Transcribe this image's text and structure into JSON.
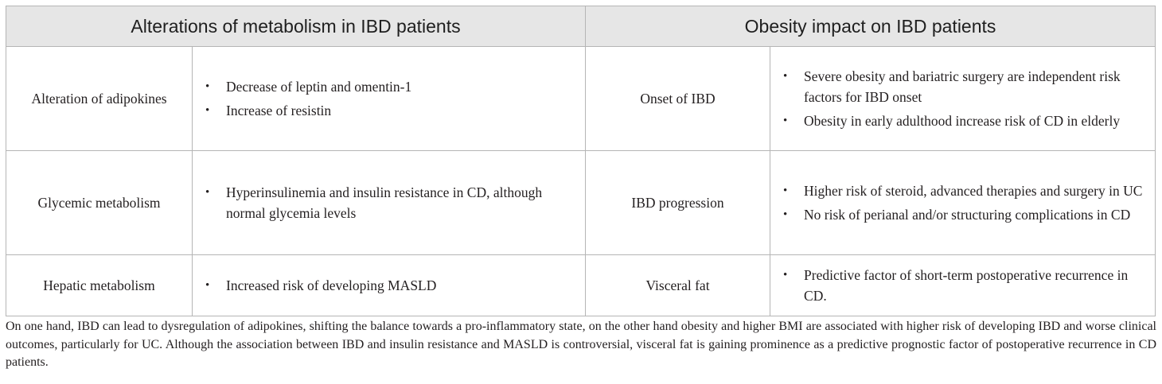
{
  "headers": {
    "left": "Alterations of metabolism in IBD patients",
    "right": "Obesity impact on IBD patients"
  },
  "rows": [
    {
      "left_label": "Alteration of adipokines",
      "left_items": [
        "Decrease of leptin and omentin-1",
        "Increase of resistin"
      ],
      "right_label": "Onset of IBD",
      "right_items": [
        "Severe obesity and bariatric surgery are independent risk factors for IBD onset",
        "Obesity in early adulthood increase risk of CD in elderly"
      ]
    },
    {
      "left_label": "Glycemic metabolism",
      "left_items": [
        "Hyperinsulinemia and insulin resistance in CD, although normal glycemia levels"
      ],
      "right_label": "IBD progression",
      "right_items": [
        "Higher risk of steroid, advanced therapies and surgery in UC",
        "No risk of perianal and/or structuring complications in CD"
      ]
    },
    {
      "left_label": "Hepatic metabolism",
      "left_items": [
        "Increased risk of developing MASLD"
      ],
      "right_label": "Visceral fat",
      "right_items": [
        "Predictive factor of short-term postoperative recurrence in CD."
      ]
    }
  ],
  "footnote": "On one hand, IBD can lead to dysregulation of adipokines, shifting the balance towards a pro-inflammatory state, on the other hand obesity and higher BMI are associated with higher risk of developing IBD and worse clinical outcomes, particularly for UC. Although the association between IBD and insulin resistance and MASLD is controversial, visceral fat is gaining prominence as a predictive prognostic factor of postoperative recurrence in CD patients."
}
